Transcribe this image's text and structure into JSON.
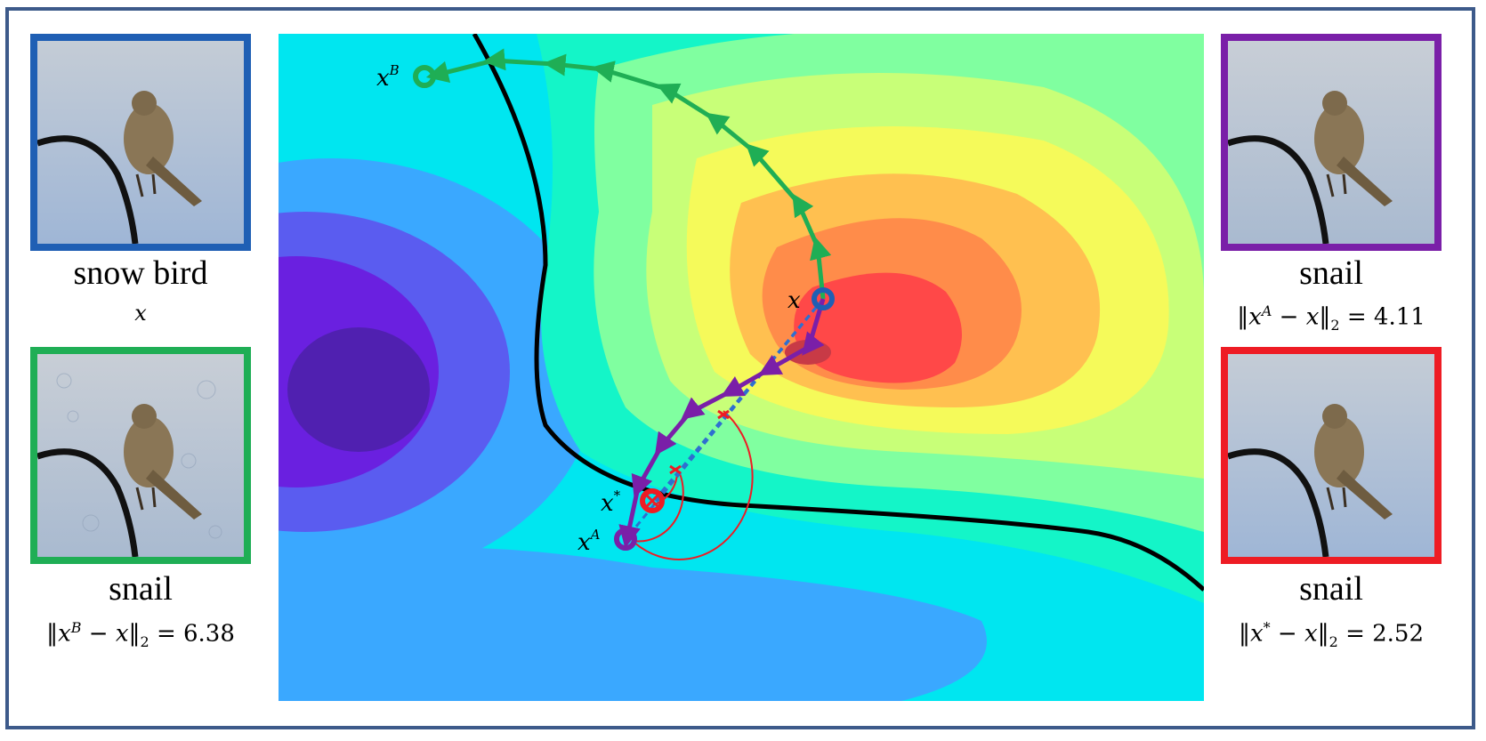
{
  "panels": {
    "original": {
      "class_label": "snow bird",
      "var_label": "x",
      "border_color": "#1f5fb4"
    },
    "adv_b": {
      "class_label": "snail",
      "norm_pre": "x",
      "norm_sup": "B",
      "norm_mid": " − x",
      "norm_sub": "2",
      "norm_value": " = 6.38",
      "border_color": "#1fae55"
    },
    "adv_a": {
      "class_label": "snail",
      "norm_pre": "x",
      "norm_sup": "A",
      "norm_mid": " − x",
      "norm_sub": "2",
      "norm_value": " = 4.11",
      "border_color": "#7a1fa8"
    },
    "adv_star": {
      "class_label": "snail",
      "norm_pre": "x",
      "norm_sup": "*",
      "norm_mid": " − x",
      "norm_sub": "2",
      "norm_value": " = 2.52",
      "border_color": "#ee1c24"
    }
  },
  "landscape": {
    "points": {
      "x": {
        "label": "x",
        "color": "#1f5fb4"
      },
      "xA": {
        "label": "x",
        "sup": "A",
        "color": "#7a1fa8"
      },
      "xB": {
        "label": "x",
        "sup": "B",
        "color": "#1fae55"
      },
      "xstar": {
        "label": "x",
        "sup": "*",
        "color": "#ee1c24"
      }
    },
    "path_colors": {
      "green": "#1fae55",
      "purple": "#7a1fa8",
      "blue_dashed": "#2f6fd0",
      "red_arc": "#ee1c24",
      "boundary": "#000000"
    }
  }
}
